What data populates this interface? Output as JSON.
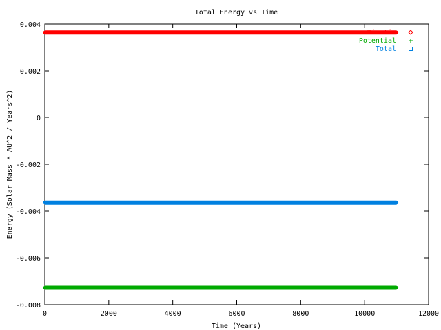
{
  "chart_data": {
    "type": "scatter",
    "title": "Total Energy vs Time",
    "xlabel": "Time (Years)",
    "ylabel": "Energy (Solar Mass * AU^2 / Years^2)",
    "xlim": [
      0,
      12000
    ],
    "ylim": [
      -0.008,
      0.004
    ],
    "x_ticks": [
      "0",
      "2000",
      "4000",
      "6000",
      "8000",
      "10000",
      "12000"
    ],
    "x_tick_values": [
      0,
      2000,
      4000,
      6000,
      8000,
      10000,
      12000
    ],
    "y_ticks": [
      "-0.008",
      "-0.006",
      "-0.004",
      "-0.002",
      "0",
      "0.002",
      "0.004"
    ],
    "y_tick_values": [
      -0.008,
      -0.006,
      -0.004,
      -0.002,
      0,
      0.002,
      0.004
    ],
    "grid": false,
    "legend_position": "top-right",
    "series": [
      {
        "name": "Kinetic",
        "marker": "diamond",
        "color": "#ff0000",
        "x": [
          0,
          1000,
          2000,
          3000,
          4000,
          5000,
          6000,
          7000,
          8000,
          9000,
          10000,
          11000
        ],
        "y": [
          0.00364,
          0.00364,
          0.00364,
          0.00364,
          0.00364,
          0.00364,
          0.00364,
          0.00364,
          0.00364,
          0.00364,
          0.00364,
          0.00364
        ]
      },
      {
        "name": "Potential",
        "marker": "plus",
        "color": "#00aa00",
        "x": [
          0,
          1000,
          2000,
          3000,
          4000,
          5000,
          6000,
          7000,
          8000,
          9000,
          10000,
          11000
        ],
        "y": [
          -0.00728,
          -0.00728,
          -0.00728,
          -0.00728,
          -0.00728,
          -0.00728,
          -0.00728,
          -0.00728,
          -0.00728,
          -0.00728,
          -0.00728,
          -0.00728
        ]
      },
      {
        "name": "Total",
        "marker": "square",
        "color": "#0080e0",
        "x": [
          0,
          1000,
          2000,
          3000,
          4000,
          5000,
          6000,
          7000,
          8000,
          9000,
          10000,
          11000
        ],
        "y": [
          -0.00364,
          -0.00364,
          -0.00364,
          -0.00364,
          -0.00364,
          -0.00364,
          -0.00364,
          -0.00364,
          -0.00364,
          -0.00364,
          -0.00364,
          -0.00364
        ]
      }
    ]
  }
}
